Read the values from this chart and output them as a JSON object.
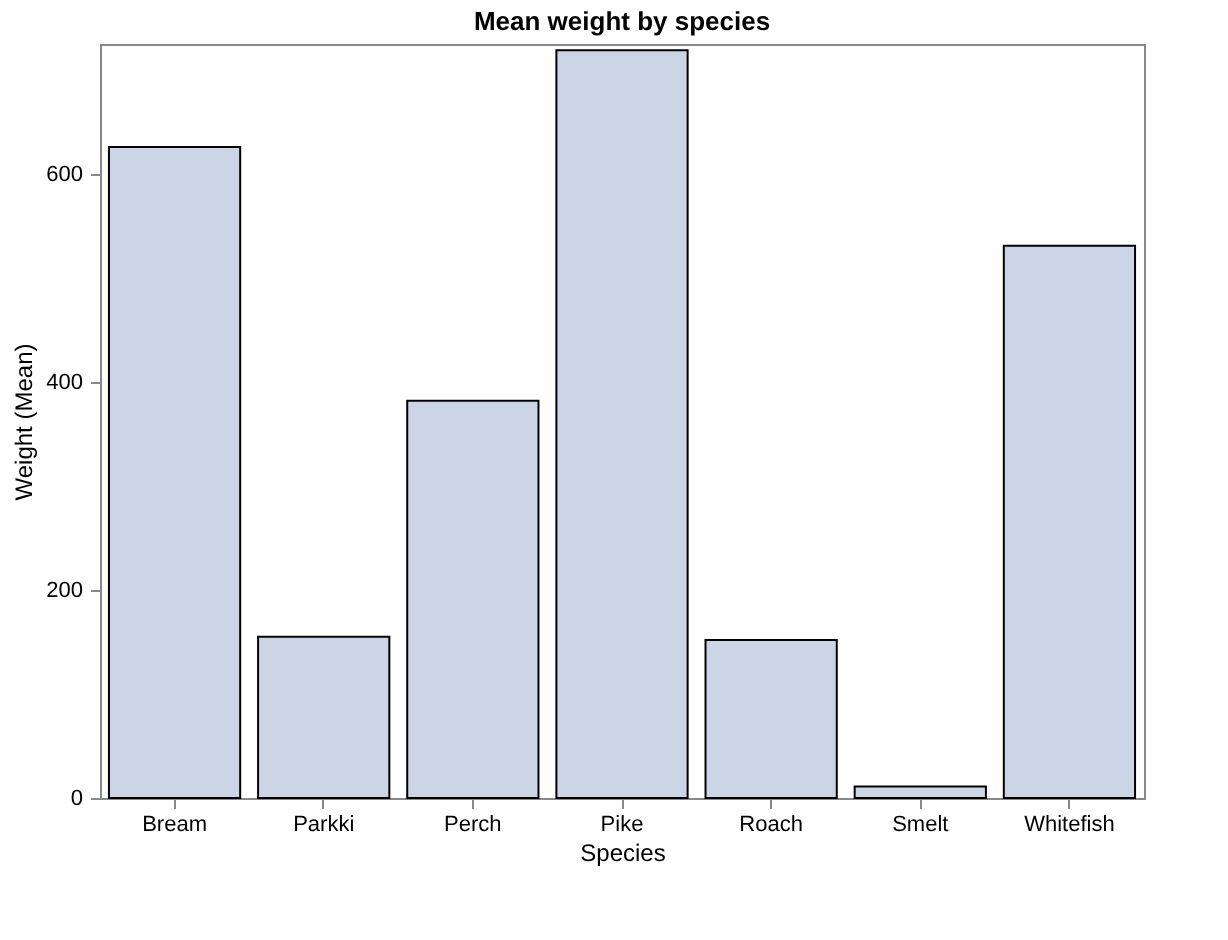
{
  "chart_data": {
    "type": "bar",
    "title": "Mean weight by species",
    "xlabel": "Species",
    "ylabel": "Weight (Mean)",
    "categories": [
      "Bream",
      "Parkki",
      "Perch",
      "Pike",
      "Roach",
      "Smelt",
      "Whitefish"
    ],
    "values": [
      626,
      155,
      382,
      719,
      152,
      11,
      531
    ],
    "color": "#cbd5e5",
    "ylim": [
      0,
      725
    ],
    "yticks": [
      0,
      200,
      400,
      600
    ],
    "grid": false
  }
}
